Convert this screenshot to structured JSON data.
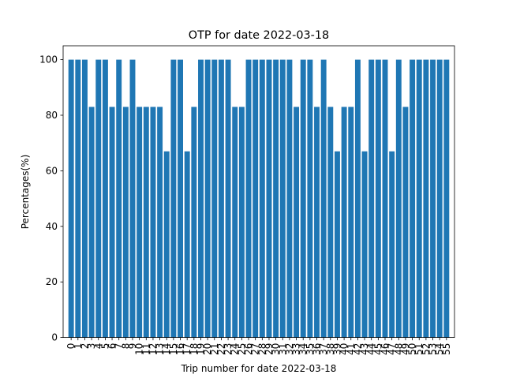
{
  "chart_data": {
    "type": "bar",
    "title": "OTP for date 2022-03-18",
    "xlabel": "Trip number for date 2022-03-18",
    "ylabel": "Percentages(%)",
    "ylim": [
      0,
      105
    ],
    "yticks": [
      0,
      20,
      40,
      60,
      80,
      100
    ],
    "grid": false,
    "bar_color": "#1f77b4",
    "categories": [
      "0",
      "1",
      "2",
      "3",
      "4",
      "5",
      "6",
      "7",
      "8",
      "9",
      "10",
      "11",
      "12",
      "13",
      "14",
      "15",
      "16",
      "17",
      "18",
      "19",
      "20",
      "21",
      "22",
      "23",
      "24",
      "25",
      "26",
      "27",
      "28",
      "29",
      "30",
      "31",
      "32",
      "33",
      "34",
      "35",
      "36",
      "37",
      "38",
      "39",
      "40",
      "41",
      "42",
      "43",
      "44",
      "45",
      "46",
      "47",
      "48",
      "49",
      "50",
      "51",
      "52",
      "53",
      "54",
      "55"
    ],
    "values": [
      100,
      100,
      100,
      83,
      100,
      100,
      83,
      100,
      83,
      100,
      83,
      83,
      83,
      83,
      67,
      100,
      100,
      67,
      83,
      100,
      100,
      100,
      100,
      100,
      83,
      83,
      100,
      100,
      100,
      100,
      100,
      100,
      100,
      83,
      100,
      100,
      83,
      100,
      83,
      67,
      83,
      83,
      100,
      67,
      100,
      100,
      100,
      67,
      100,
      83,
      100,
      100,
      100,
      100,
      100,
      100
    ]
  }
}
